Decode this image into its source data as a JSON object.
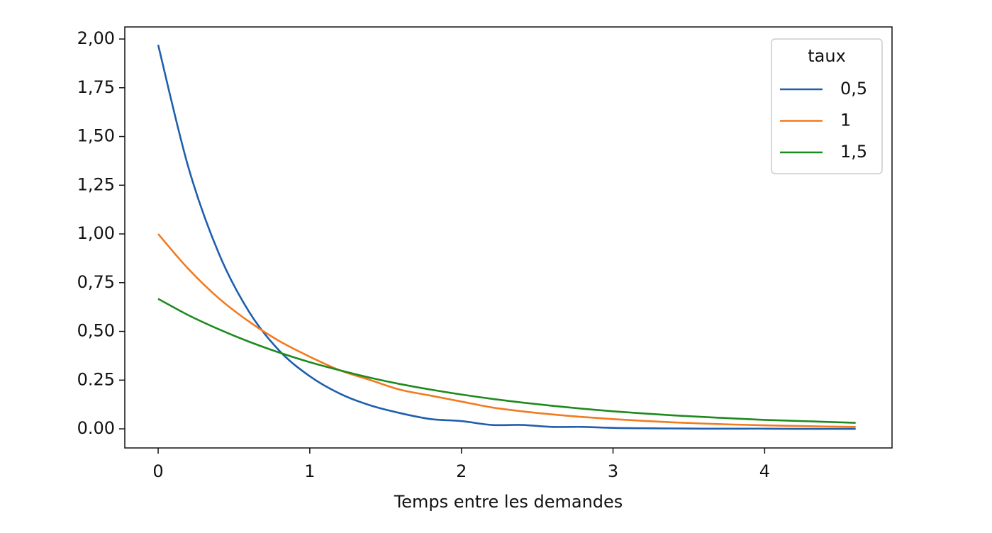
{
  "chart_data": {
    "type": "line",
    "xlabel": "Temps entre les demandes",
    "legend_title": "taux",
    "legend": "upper right",
    "x": [
      0,
      0.2,
      0.4,
      0.6,
      0.8,
      1.0,
      1.2,
      1.4,
      1.6,
      1.8,
      2.0,
      2.2,
      2.4,
      2.6,
      2.8,
      3.0,
      3.2,
      3.4,
      3.6,
      3.8,
      4.0,
      4.2,
      4.4,
      4.6
    ],
    "series": [
      {
        "name": "0,5",
        "color": "#1f5fad",
        "values": [
          1.97,
          1.34,
          0.9,
          0.6,
          0.4,
          0.27,
          0.18,
          0.12,
          0.08,
          0.05,
          0.04,
          0.02,
          0.02,
          0.01,
          0.01,
          0.005,
          0.003,
          0.002,
          0.001,
          0.001,
          0.001,
          0,
          0,
          0
        ]
      },
      {
        "name": "1",
        "color": "#f27a1f",
        "values": [
          1.0,
          0.82,
          0.67,
          0.55,
          0.45,
          0.37,
          0.3,
          0.25,
          0.2,
          0.17,
          0.14,
          0.11,
          0.09,
          0.074,
          0.061,
          0.05,
          0.041,
          0.033,
          0.027,
          0.022,
          0.018,
          0.015,
          0.012,
          0.01
        ]
      },
      {
        "name": "1,5",
        "color": "#1e8a1e",
        "values": [
          0.667,
          0.583,
          0.511,
          0.447,
          0.391,
          0.342,
          0.3,
          0.262,
          0.229,
          0.201,
          0.176,
          0.154,
          0.135,
          0.118,
          0.103,
          0.09,
          0.079,
          0.069,
          0.061,
          0.053,
          0.046,
          0.041,
          0.036,
          0.031
        ]
      }
    ],
    "xlim": [
      -0.22,
      4.84
    ],
    "ylim": [
      -0.098,
      2.062
    ],
    "xticks": [
      0,
      1,
      2,
      3,
      4
    ],
    "yticks": [
      {
        "value": 0,
        "label": "0.00"
      },
      {
        "value": 0.25,
        "label": "0.25"
      },
      {
        "value": 0.5,
        "label": "0,50"
      },
      {
        "value": 0.75,
        "label": "0,75"
      },
      {
        "value": 1,
        "label": "1,00"
      },
      {
        "value": 1.25,
        "label": "1,25"
      },
      {
        "value": 1.5,
        "label": "1,50"
      },
      {
        "value": 1.75,
        "label": "1,75"
      },
      {
        "value": 2,
        "label": "2,00"
      }
    ],
    "grid": false
  }
}
